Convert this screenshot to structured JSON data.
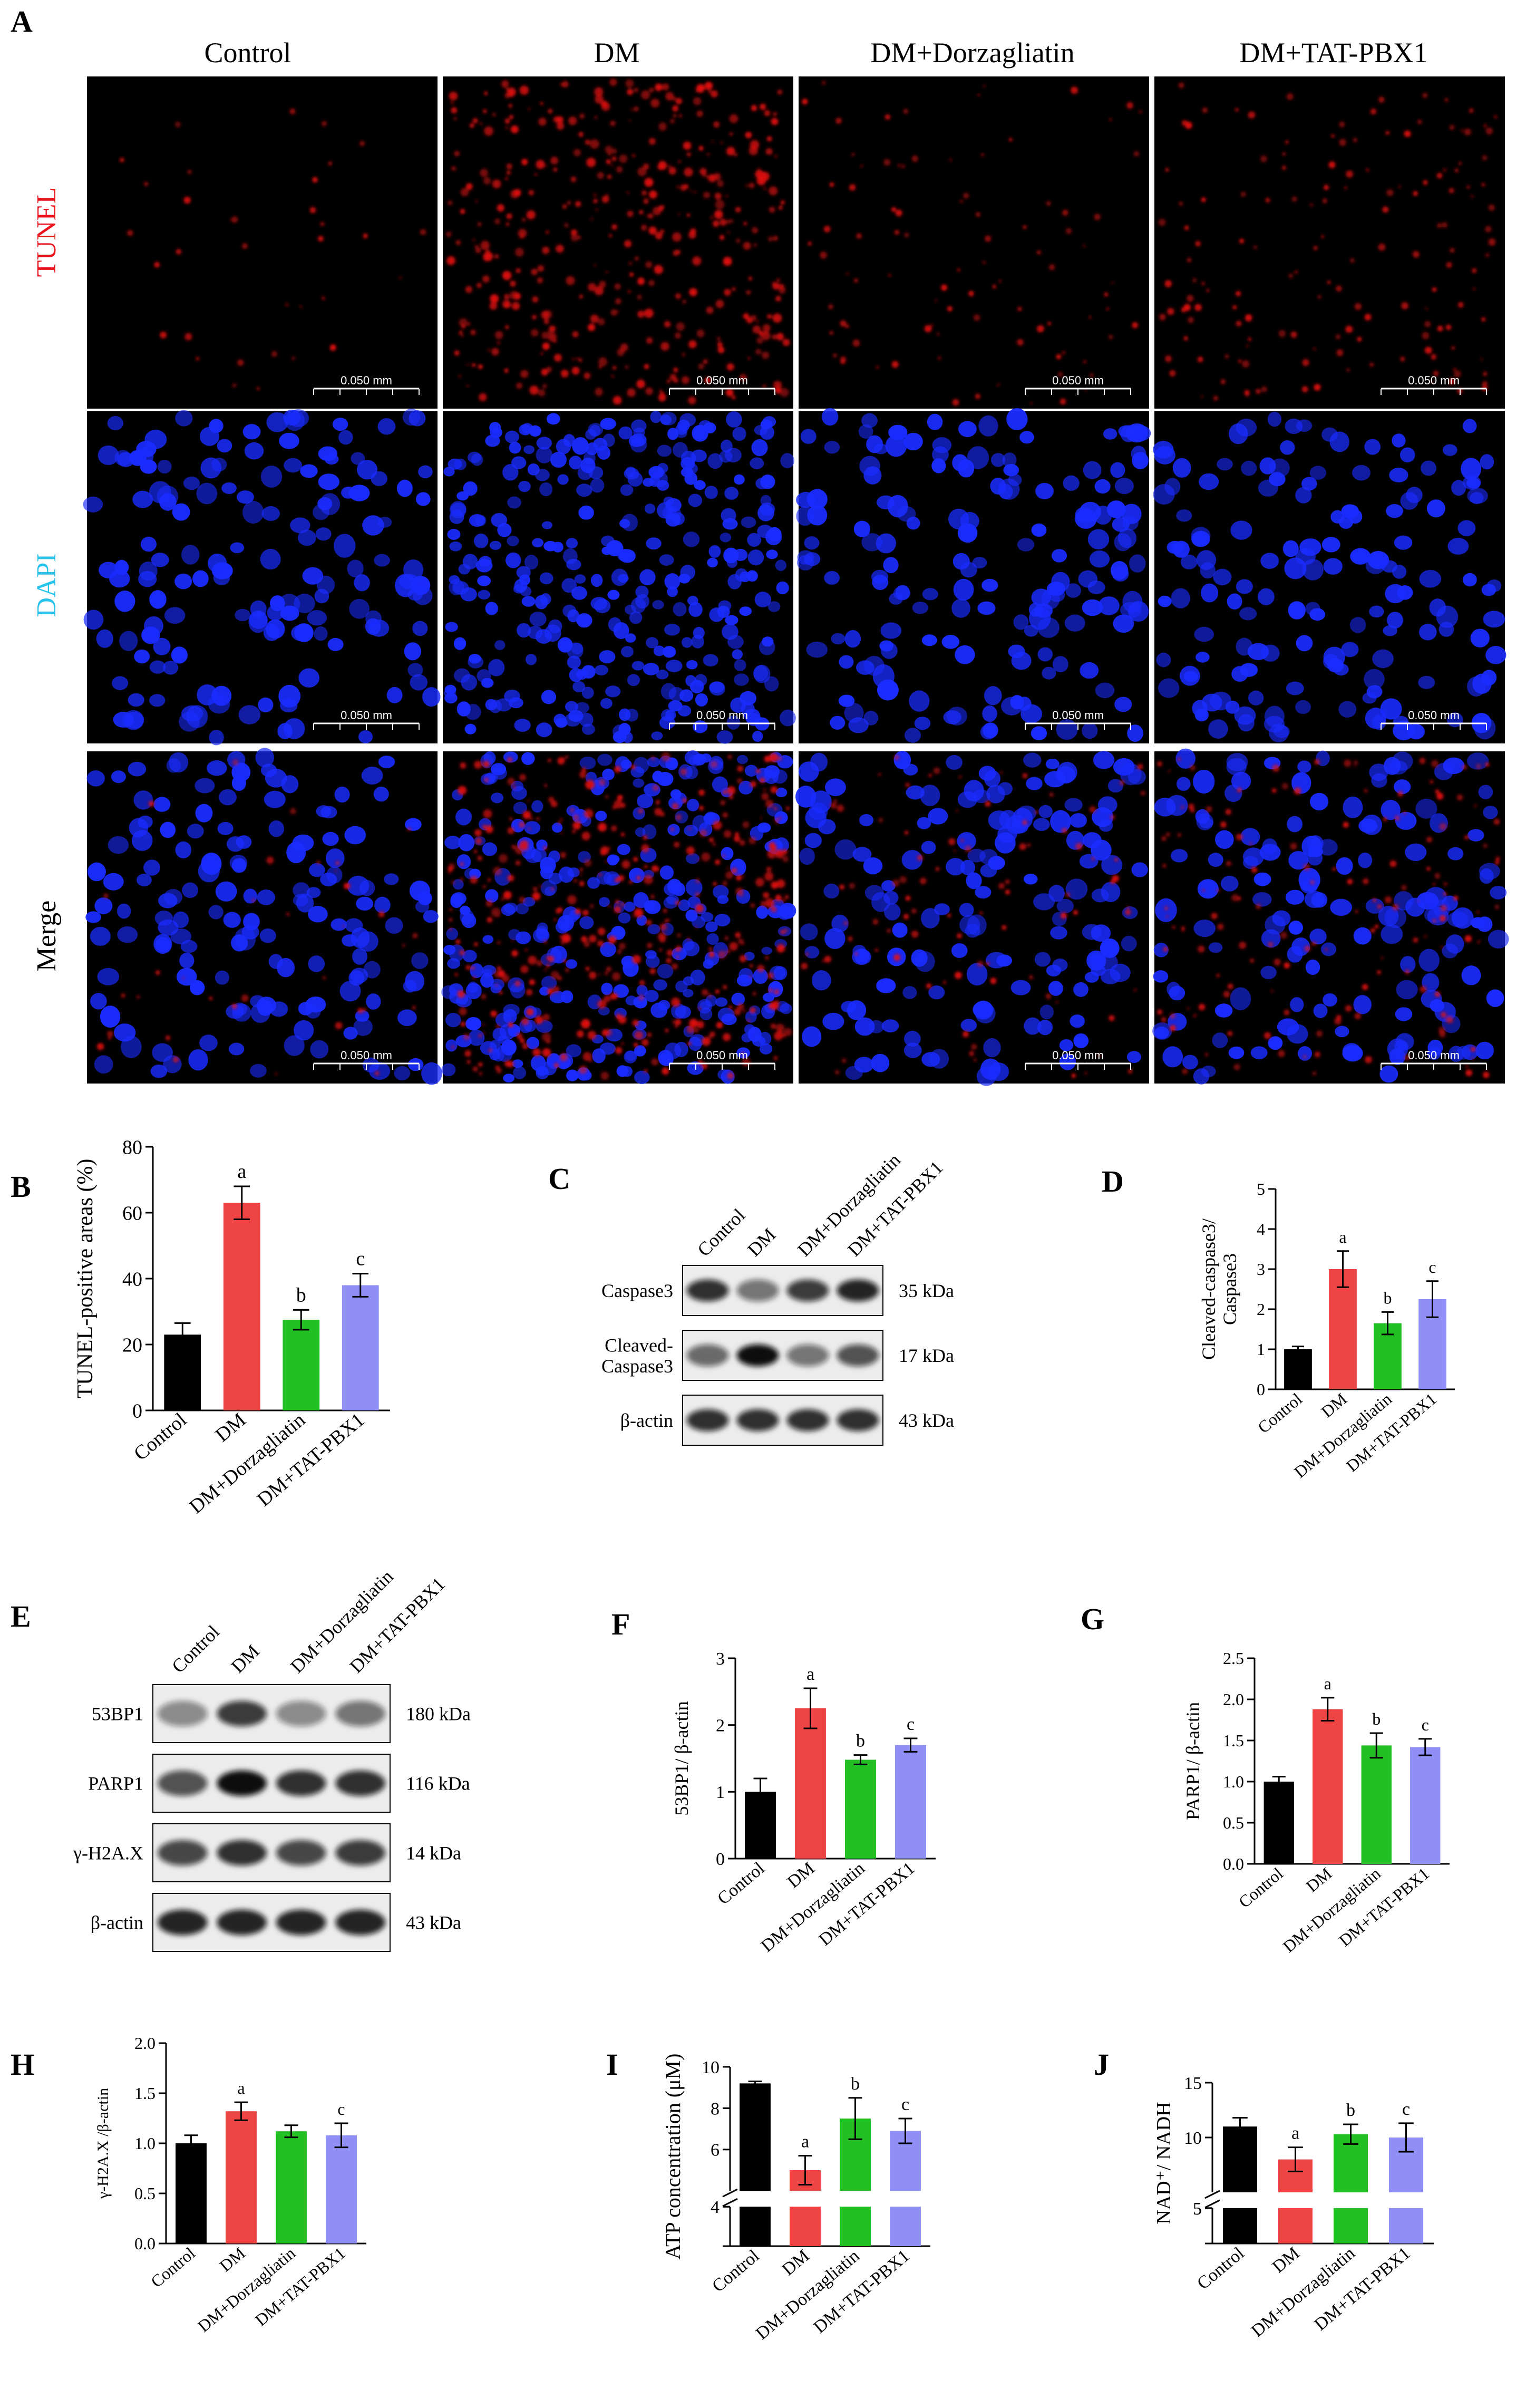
{
  "panelA": {
    "letter": "A",
    "columns": [
      "Control",
      "DM",
      "DM+Dorzagliatin",
      "DM+TAT-PBX1"
    ],
    "rows": [
      {
        "label": "TUNEL",
        "color": "#e8131d"
      },
      {
        "label": "DAPI",
        "color": "#27c3ea"
      },
      {
        "label": "Merge",
        "color": "#000000"
      }
    ],
    "scale_bar": "0.050 mm",
    "colors": {
      "tunel": "#e01010",
      "dapi": "#1a2cff",
      "background": "#000000"
    }
  },
  "panelB": {
    "letter": "B"
  },
  "panelC": {
    "letter": "C",
    "lanes": [
      "Control",
      "DM",
      "DM+Dorzagliatin",
      "DM+TAT-PBX1"
    ],
    "proteins": [
      {
        "label": "Caspase3",
        "kda": "35 kDa"
      },
      {
        "label": "Cleaved-\nCaspase3",
        "kda": "17 kDa"
      },
      {
        "label": "β-actin",
        "kda": "43 kDa"
      }
    ]
  },
  "panelD": {
    "letter": "D"
  },
  "panelE": {
    "letter": "E",
    "lanes": [
      "Control",
      "DM",
      "DM+Dorzagliatin",
      "DM+TAT-PBX1"
    ],
    "proteins": [
      {
        "label": "53BP1",
        "kda": "180 kDa"
      },
      {
        "label": "PARP1",
        "kda": "116 kDa"
      },
      {
        "label": "γ-H2A.X",
        "kda": "14 kDa"
      },
      {
        "label": "β-actin",
        "kda": "43 kDa"
      }
    ]
  },
  "panelF": {
    "letter": "F"
  },
  "panelG": {
    "letter": "G"
  },
  "panelH": {
    "letter": "H"
  },
  "panelI": {
    "letter": "I"
  },
  "panelJ": {
    "letter": "J"
  },
  "chart_data": [
    {
      "id": "B",
      "type": "bar",
      "categories": [
        "Control",
        "DM",
        "DM+Dorzagliatin",
        "DM+TAT-PBX1"
      ],
      "values": [
        23,
        63,
        27.5,
        38
      ],
      "errors": [
        3.5,
        5,
        3,
        3.5
      ],
      "letters": [
        "",
        "a",
        "b",
        "c"
      ],
      "ylabel": "TUNEL-positive areas (%)",
      "ylim": [
        0,
        80
      ],
      "ticks": [
        0,
        20,
        40,
        60,
        80
      ]
    },
    {
      "id": "D",
      "type": "bar",
      "categories": [
        "Control",
        "DM",
        "DM+Dorzagliatin",
        "DM+TAT-PBX1"
      ],
      "values": [
        1.0,
        3.0,
        1.65,
        2.25
      ],
      "errors": [
        0.07,
        0.45,
        0.28,
        0.45
      ],
      "letters": [
        "",
        "a",
        "b",
        "c"
      ],
      "ylabel": "Cleaved-caspase3/\nCaspase3",
      "ylim": [
        0,
        5
      ],
      "ticks": [
        0,
        1,
        2,
        3,
        4,
        5
      ]
    },
    {
      "id": "F",
      "type": "bar",
      "categories": [
        "Control",
        "DM",
        "DM+Dorzagliatin",
        "DM+TAT-PBX1"
      ],
      "values": [
        1.0,
        2.25,
        1.48,
        1.7
      ],
      "errors": [
        0.2,
        0.3,
        0.07,
        0.1
      ],
      "letters": [
        "",
        "a",
        "b",
        "c"
      ],
      "ylabel": "53BP1/ β-actin",
      "ylim": [
        0,
        3
      ],
      "ticks": [
        0,
        1,
        2,
        3
      ]
    },
    {
      "id": "G",
      "type": "bar",
      "categories": [
        "Control",
        "DM",
        "DM+Dorzagliatin",
        "DM+TAT-PBX1"
      ],
      "values": [
        1.0,
        1.88,
        1.44,
        1.42
      ],
      "errors": [
        0.06,
        0.14,
        0.15,
        0.1
      ],
      "letters": [
        "",
        "a",
        "b",
        "c"
      ],
      "ylabel": "PARP1/ β-actin",
      "ylim": [
        0,
        2.5
      ],
      "ticks": [
        0.0,
        0.5,
        1.0,
        1.5,
        2.0,
        2.5
      ],
      "tick_labels": [
        "0.0",
        "0.5",
        "1.0",
        "1.5",
        "2.0",
        "2.5"
      ]
    },
    {
      "id": "H",
      "type": "bar",
      "categories": [
        "Control",
        "DM",
        "DM+Dorzagliatin",
        "DM+TAT-PBX1"
      ],
      "values": [
        1.0,
        1.32,
        1.12,
        1.08
      ],
      "errors": [
        0.08,
        0.09,
        0.06,
        0.12
      ],
      "letters": [
        "",
        "a",
        "",
        "c"
      ],
      "ylabel": "γ-H2A.X /β-actin",
      "ylim": [
        0,
        2.0
      ],
      "ticks": [
        0.0,
        0.5,
        1.0,
        1.5,
        2.0
      ],
      "tick_labels": [
        "0.0",
        "0.5",
        "1.0",
        "1.5",
        "2.0"
      ]
    },
    {
      "id": "I",
      "type": "bar",
      "categories": [
        "Control",
        "DM",
        "DM+Dorzagliatin",
        "DM+TAT-PBX1"
      ],
      "values": [
        9.2,
        5.0,
        7.5,
        6.9
      ],
      "errors": [
        0.1,
        0.7,
        1.0,
        0.6
      ],
      "letters": [
        "",
        "a",
        "b",
        "c"
      ],
      "ylabel": "ATP concentration (μM)",
      "broken_axis": {
        "lower": [
          0,
          4
        ],
        "upper": [
          4,
          10
        ]
      },
      "ticks": [
        4,
        6,
        8,
        10
      ],
      "lower_ticks": [
        4
      ],
      "baseline": "0"
    },
    {
      "id": "J",
      "type": "bar",
      "categories": [
        "Control",
        "DM",
        "DM+Dorzagliatin",
        "DM+TAT-PBX1"
      ],
      "values": [
        11.0,
        8.0,
        10.3,
        10.0
      ],
      "errors": [
        0.8,
        1.1,
        0.9,
        1.3
      ],
      "letters": [
        "",
        "a",
        "b",
        "c"
      ],
      "ylabel": "NAD⁺/ NADH",
      "broken_axis": {
        "lower": [
          0,
          5
        ],
        "upper": [
          5,
          15
        ]
      },
      "ticks": [
        5,
        10,
        15
      ],
      "lower_ticks": [
        5
      ],
      "baseline": "0"
    }
  ],
  "colors": {
    "control": "#000000",
    "dm": "#ef4444",
    "dorzagliatin": "#22c022",
    "tatpbx1": "#8f8ff5"
  }
}
